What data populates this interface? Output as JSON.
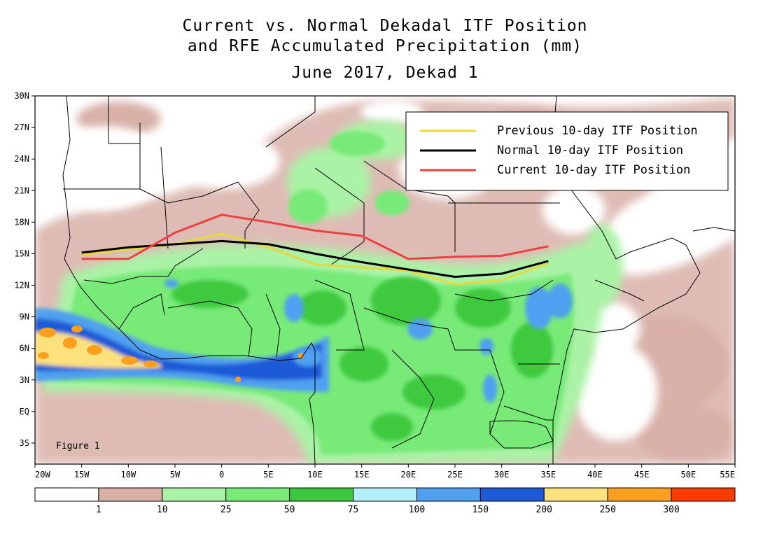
{
  "title": {
    "line1": "Current vs. Normal Dekadal ITF Position",
    "line2": "and RFE Accumulated Precipitation (mm)",
    "line3": "June 2017, Dekad 1"
  },
  "figure_label": "Figure 1",
  "lat_ticks": [
    "30N",
    "27N",
    "24N",
    "21N",
    "18N",
    "15N",
    "12N",
    "9N",
    "6N",
    "3N",
    "EQ",
    "3S"
  ],
  "lon_ticks": [
    "20W",
    "15W",
    "10W",
    "5W",
    "0",
    "5E",
    "10E",
    "15E",
    "20E",
    "25E",
    "30E",
    "35E",
    "40E",
    "45E",
    "50E",
    "55E"
  ],
  "map_extent": {
    "lon_min": -20,
    "lon_max": 55,
    "lat_min": -5,
    "lat_max": 30
  },
  "legend": {
    "items": [
      {
        "label": "Previous 10-day ITF Position",
        "color": "#e8d83a"
      },
      {
        "label": "Normal 10-day ITF Position",
        "color": "#000000"
      },
      {
        "label": "Current 10-day ITF Position",
        "color": "#ee4040"
      }
    ]
  },
  "colorbar": {
    "colors": [
      "#ffffff",
      "#d8b0a8",
      "#aaf2a6",
      "#78ea78",
      "#3cc83c",
      "#b4f0fa",
      "#50a0f0",
      "#1e5ad7",
      "#fce17d",
      "#fc9f1e",
      "#fa3c00"
    ],
    "labels": [
      "1",
      "10",
      "25",
      "50",
      "75",
      "100",
      "150",
      "200",
      "250",
      "300"
    ]
  },
  "itf_lines": {
    "previous": {
      "color": "#e8d83a",
      "points": [
        [
          -15,
          14.9
        ],
        [
          -5,
          15.9
        ],
        [
          0,
          16.9
        ],
        [
          5,
          15.6
        ],
        [
          10,
          14.0
        ],
        [
          20,
          13.4
        ],
        [
          25,
          12.1
        ],
        [
          30,
          12.5
        ],
        [
          35,
          14.1
        ]
      ]
    },
    "normal": {
      "color": "#000000",
      "points": [
        [
          -15,
          15.1
        ],
        [
          -10,
          15.6
        ],
        [
          -5,
          15.9
        ],
        [
          0,
          16.2
        ],
        [
          5,
          15.9
        ],
        [
          10,
          15.0
        ],
        [
          15,
          14.2
        ],
        [
          20,
          13.5
        ],
        [
          25,
          12.8
        ],
        [
          30,
          13.1
        ],
        [
          35,
          14.3
        ]
      ]
    },
    "current": {
      "color": "#ee4040",
      "points": [
        [
          -15,
          14.5
        ],
        [
          -10,
          14.5
        ],
        [
          -5,
          17.0
        ],
        [
          0,
          18.7
        ],
        [
          5,
          18.0
        ],
        [
          10,
          17.2
        ],
        [
          15,
          16.7
        ],
        [
          20,
          14.5
        ],
        [
          25,
          14.7
        ],
        [
          30,
          14.8
        ],
        [
          35,
          15.7
        ]
      ]
    }
  }
}
